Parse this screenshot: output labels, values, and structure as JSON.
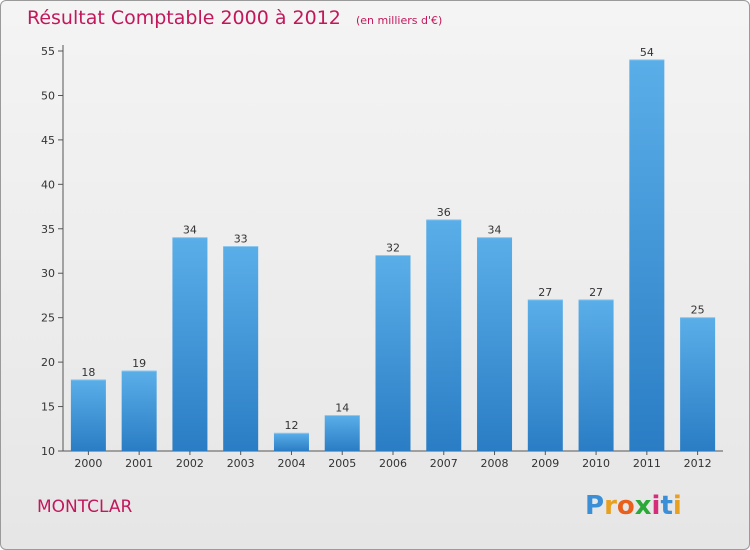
{
  "chart_data": {
    "type": "bar",
    "title": "Résultat Comptable 2000 à 2012",
    "unit_note": "(en milliers d'€)",
    "categories": [
      "2000",
      "2001",
      "2002",
      "2003",
      "2004",
      "2005",
      "2006",
      "2007",
      "2008",
      "2009",
      "2010",
      "2011",
      "2012"
    ],
    "values": [
      18,
      19,
      34,
      33,
      12,
      14,
      32,
      36,
      34,
      27,
      27,
      54,
      25
    ],
    "ylim": [
      10,
      55
    ],
    "yticks": [
      10,
      15,
      20,
      25,
      30,
      35,
      40,
      45,
      50,
      55
    ],
    "grid": false,
    "bar_color_top": "#5aaee8",
    "bar_color_bottom": "#2a7dc4"
  },
  "footer": {
    "town": "MONTCLAR",
    "logo_letters": [
      "P",
      "r",
      "o",
      "x",
      "i",
      "t",
      "i"
    ],
    "logo_colors": [
      "#3a8fd6",
      "#e8a020",
      "#e8601c",
      "#2aa838",
      "#d62c7c",
      "#3a8fd6",
      "#e8a020"
    ]
  },
  "colors": {
    "title": "#c2185b",
    "axis": "#555555"
  }
}
